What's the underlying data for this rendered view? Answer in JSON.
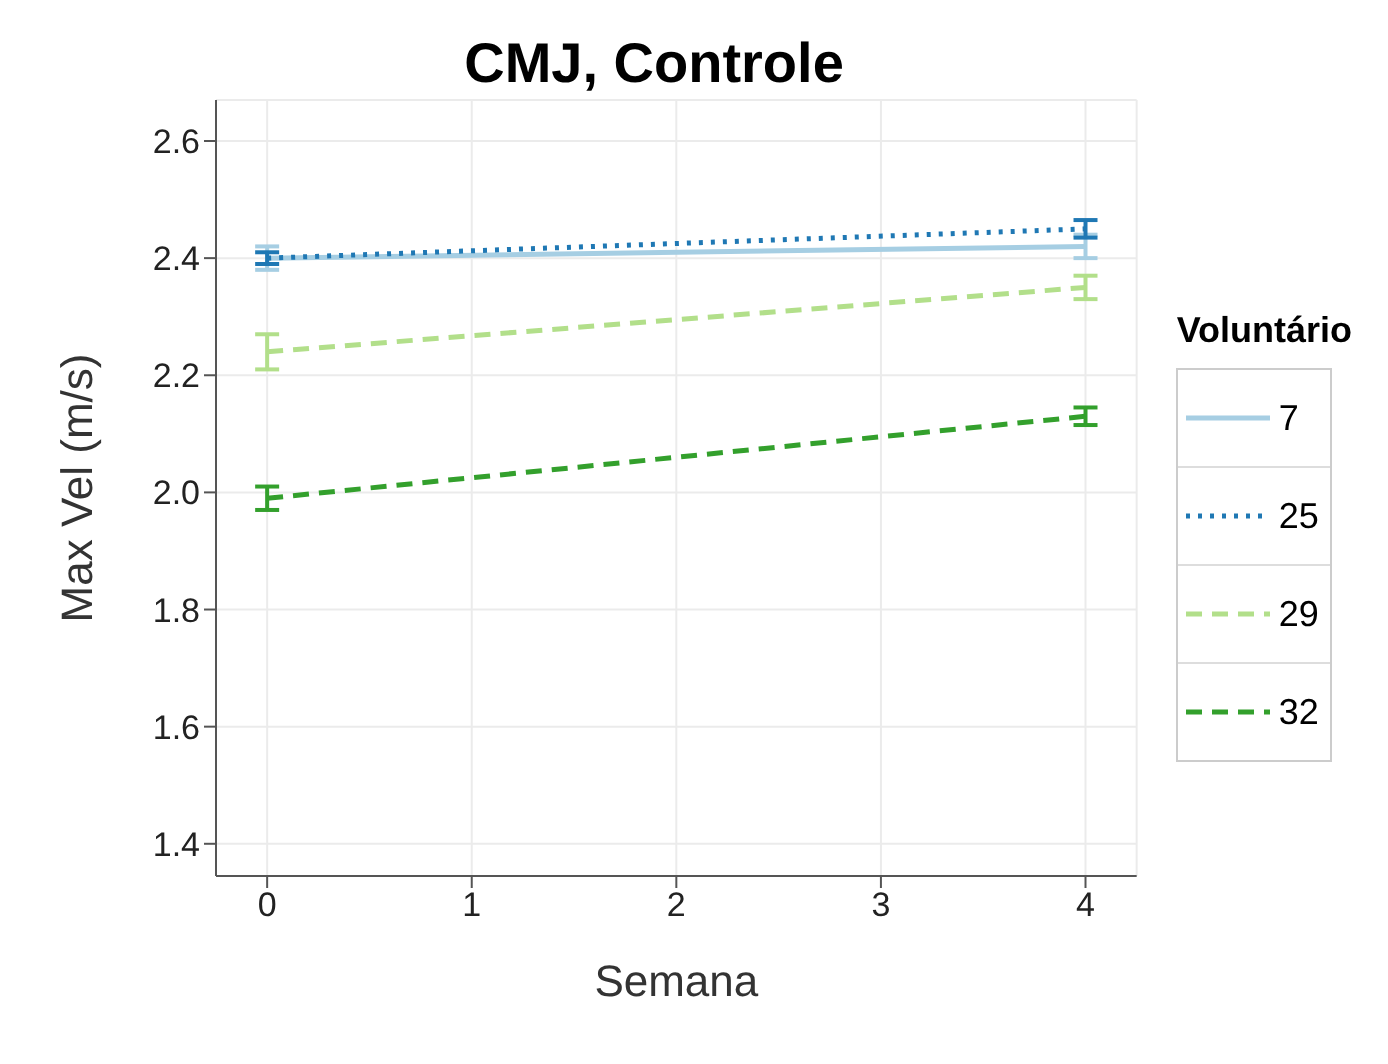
{
  "chart_data": {
    "type": "line",
    "title": "CMJ, Controle",
    "xlabel": "Semana",
    "ylabel": "Max Vel  (m/s)",
    "legend_title": "Voluntário",
    "x": [
      0,
      4
    ],
    "xlim": [
      -0.25,
      4.25
    ],
    "xticks": [
      0,
      1,
      2,
      3,
      4
    ],
    "ylim": [
      1.345,
      2.67
    ],
    "yticks": [
      1.4,
      1.6,
      1.8,
      {
        "value": 2,
        "label": "2.0"
      },
      2.2,
      2.4,
      2.6
    ],
    "grid": true,
    "legend": "right",
    "marker": "none",
    "series": [
      {
        "name": "7",
        "color": "#a6cee3",
        "values": [
          2.4,
          2.42
        ],
        "errors": [
          0.02,
          0.02
        ],
        "line_style": "solid"
      },
      {
        "name": "25",
        "color": "#1f78b4",
        "values": [
          2.4,
          2.45
        ],
        "errors": [
          0.01,
          0.015
        ],
        "line_style": "dotted"
      },
      {
        "name": "29",
        "color": "#b2df8a",
        "values": [
          2.24,
          2.35
        ],
        "errors": [
          0.03,
          0.02
        ],
        "line_style": "dashed"
      },
      {
        "name": "32",
        "color": "#33a02c",
        "values": [
          1.99,
          2.13
        ],
        "errors": [
          0.02,
          0.015
        ],
        "line_style": "dashed"
      }
    ]
  }
}
